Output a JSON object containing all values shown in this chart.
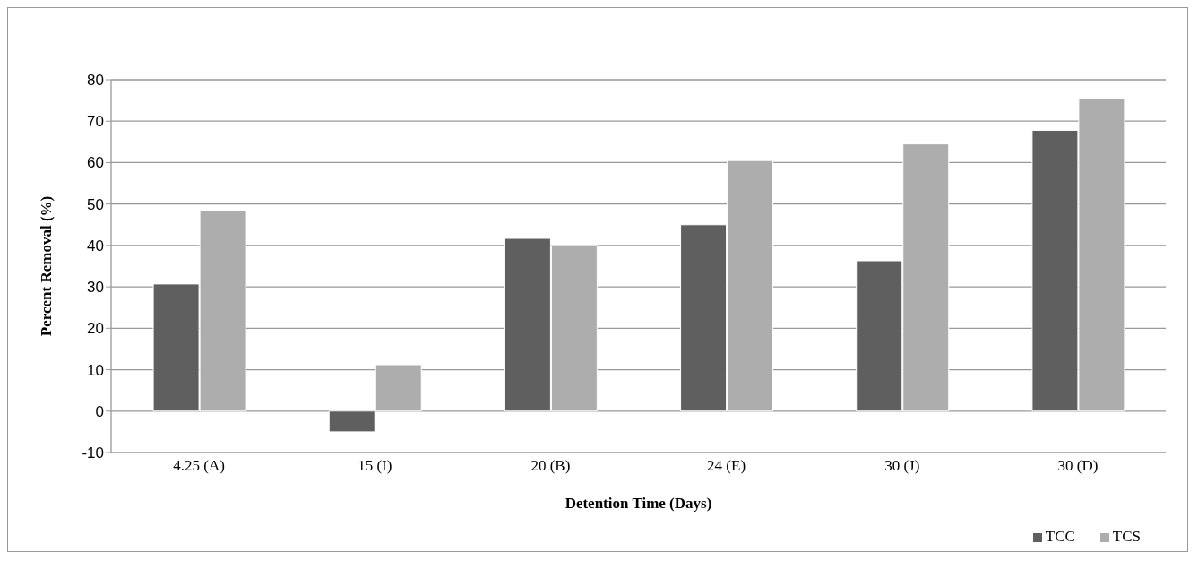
{
  "chart_data": {
    "type": "bar",
    "xlabel": "Detention Time (Days)",
    "ylabel": "Percent Removal (%)",
    "categories": [
      "4.25 (A)",
      "15 (I)",
      "20 (B)",
      "24 (E)",
      "30 (J)",
      "30 (D)"
    ],
    "series": [
      {
        "name": "TCC",
        "color": "#5f5f5f",
        "values": [
          30.7,
          -5,
          41.7,
          45,
          36.3,
          67.8
        ]
      },
      {
        "name": "TCS",
        "color": "#adadad",
        "values": [
          48.5,
          11.2,
          40,
          60.5,
          64.5,
          75.4
        ]
      }
    ],
    "ylim": [
      -10,
      80
    ],
    "yticks": [
      -10,
      0,
      10,
      20,
      30,
      40,
      50,
      60,
      70,
      80
    ],
    "grid": "y",
    "legend": "bottom right"
  }
}
